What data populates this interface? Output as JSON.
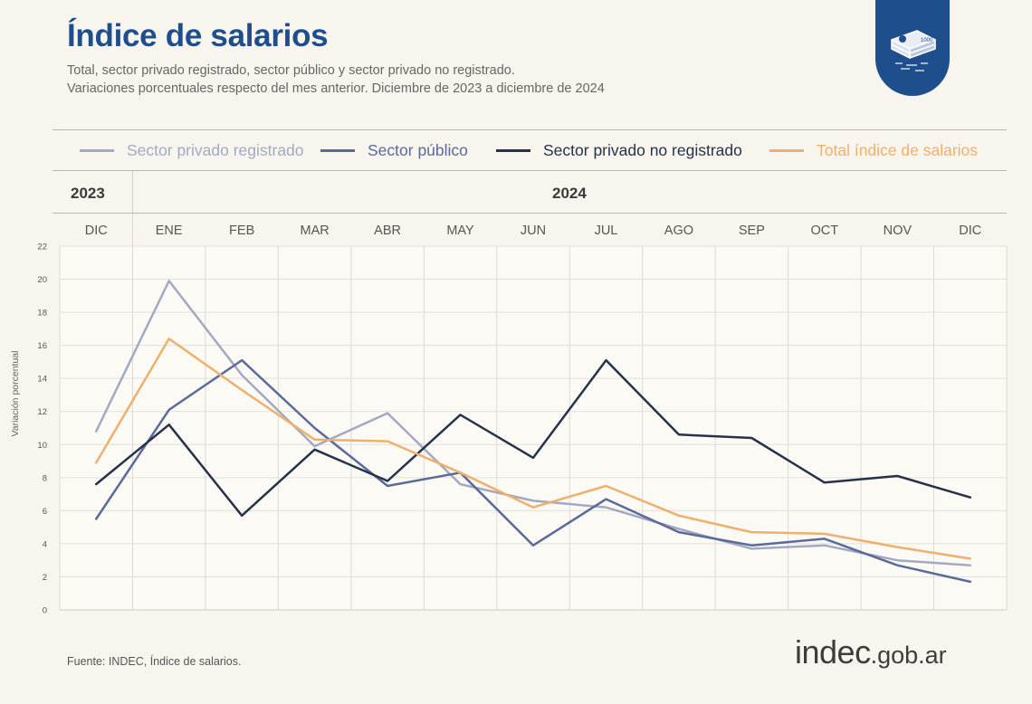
{
  "header": {
    "title": "Índice de salarios",
    "subtitle_1": "Total, sector privado registrado, sector público y sector privado no registrado.",
    "subtitle_2": "Variaciones porcentuales respecto del mes anterior. Diciembre de 2023 a diciembre de 2024"
  },
  "badge": {
    "icon": "money-stack-icon",
    "color": "#1f4e8c"
  },
  "years": {
    "y2023": "2023",
    "y2024": "2024"
  },
  "footer": {
    "source": "Fuente: INDEC, Índice de salarios.",
    "logo_main": "indec",
    "logo_suffix": ".gob.ar"
  },
  "chart_data": {
    "type": "line",
    "x": [
      "DIC",
      "ENE",
      "FEB",
      "MAR",
      "ABR",
      "MAY",
      "JUN",
      "JUL",
      "AGO",
      "SEP",
      "OCT",
      "NOV",
      "DIC"
    ],
    "ylabel": "Variación porcentual",
    "ylim": [
      0,
      22
    ],
    "yticks": [
      0,
      2,
      4,
      6,
      8,
      10,
      12,
      14,
      16,
      18,
      20,
      22
    ],
    "grid": true,
    "legend_position": "top",
    "series": [
      {
        "name": "Sector privado registrado",
        "color": "#a3a9c2",
        "values": [
          10.8,
          19.9,
          14.2,
          9.9,
          11.9,
          7.6,
          6.6,
          6.2,
          4.9,
          3.7,
          3.9,
          3.0,
          2.7
        ]
      },
      {
        "name": "Sector público",
        "color": "#5a6a9a",
        "values": [
          5.5,
          12.1,
          15.1,
          11.0,
          7.5,
          8.3,
          3.9,
          6.7,
          4.7,
          3.9,
          4.3,
          2.7,
          1.7
        ]
      },
      {
        "name": "Sector privado no registrado",
        "color": "#26324a",
        "values": [
          7.6,
          11.2,
          5.7,
          9.7,
          7.8,
          11.8,
          9.2,
          15.1,
          10.6,
          10.4,
          7.7,
          8.1,
          6.8
        ]
      },
      {
        "name": "Total índice de salarios",
        "color": "#eeb06c",
        "values": [
          8.9,
          16.4,
          13.3,
          10.3,
          10.2,
          8.3,
          6.2,
          7.5,
          5.7,
          4.7,
          4.6,
          3.8,
          3.1
        ]
      }
    ]
  }
}
